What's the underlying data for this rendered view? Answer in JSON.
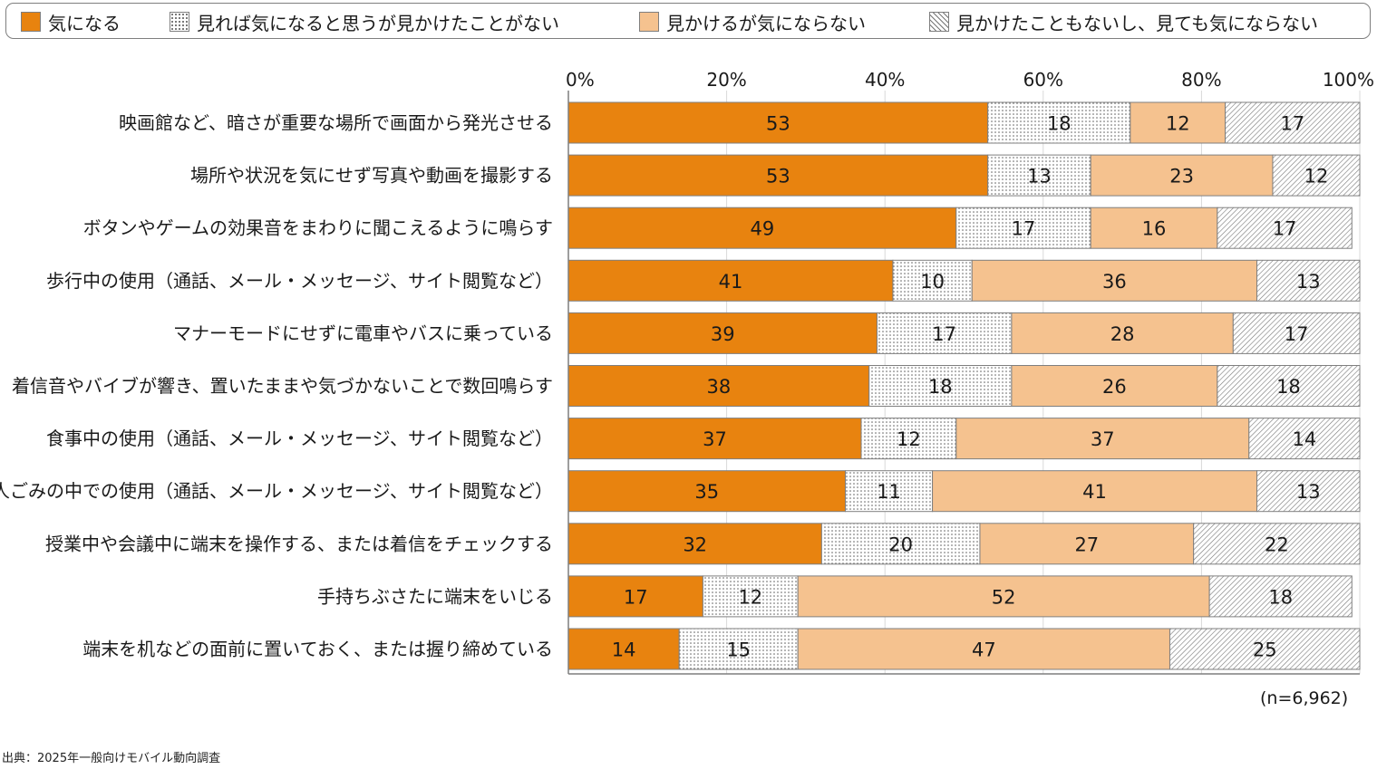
{
  "colors": {
    "s1": "#E8830F",
    "s2": "#FFFFFF",
    "s3": "#F5C28F",
    "s4": "#FFFFFF",
    "bar_border": "#7f7f7f",
    "axis": "#7f7f7f",
    "grid": "#d9d9d9",
    "label_text": "#1a1a1a"
  },
  "chart_data": {
    "type": "bar",
    "orientation": "horizontal",
    "stacked": true,
    "percent_axis": true,
    "xlim": [
      0,
      100
    ],
    "x_ticks": [
      "0%",
      "20%",
      "40%",
      "60%",
      "80%",
      "100%"
    ],
    "categories": [
      "映画館など、暗さが重要な場所で画面から発光させる",
      "場所や状況を気にせず写真や動画を撮影する",
      "ボタンやゲームの効果音をまわりに聞こえるように鳴らす",
      "歩行中の使用（通話、メール・メッセージ、サイト閲覧など）",
      "マナーモードにせずに電車やバスに乗っている",
      "着信音やバイブが響き、置いたままや気づかないことで数回鳴らす",
      "食事中の使用（通話、メール・メッセージ、サイト閲覧など）",
      "人ごみの中での使用（通話、メール・メッセージ、サイト閲覧など）",
      "授業中や会議中に端末を操作する、または着信をチェックする",
      "手持ちぶさたに端末をいじる",
      "端末を机などの面前に置いておく、または握り締めている"
    ],
    "series": [
      {
        "name": "気になる",
        "pattern": "solid",
        "values": [
          53,
          53,
          49,
          41,
          39,
          38,
          37,
          35,
          32,
          17,
          14
        ]
      },
      {
        "name": "見れば気になると思うが見かけたことがない",
        "pattern": "dots",
        "values": [
          18,
          13,
          17,
          10,
          17,
          18,
          12,
          11,
          20,
          12,
          15
        ]
      },
      {
        "name": "見かけるが気にならない",
        "pattern": "solid",
        "values": [
          12,
          23,
          16,
          36,
          28,
          26,
          37,
          41,
          27,
          52,
          47
        ]
      },
      {
        "name": "見かけたこともないし、見ても気にならない",
        "pattern": "hatch",
        "values": [
          17,
          12,
          17,
          13,
          17,
          18,
          14,
          13,
          22,
          18,
          25
        ]
      }
    ],
    "legend_position": "top",
    "note": "(n=6,962)",
    "source": "出典：2025年一般向けモバイル動向調査"
  }
}
